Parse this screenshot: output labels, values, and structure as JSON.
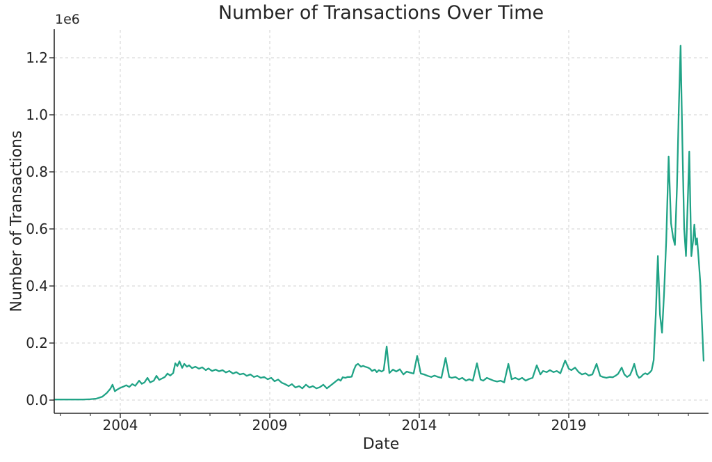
{
  "figure": {
    "background": "#ffffff",
    "text_color": "#252525"
  },
  "chart_data": {
    "type": "line",
    "title": "Number of Transactions Over Time",
    "xlabel": "Date",
    "ylabel": "Number of Transactions",
    "y_offset_label": "1e6",
    "y_unit_multiplier": 1000000,
    "grid": true,
    "grid_style": "dashed",
    "grid_color": "#d0d0d0",
    "line_color": "#20a386",
    "spine_color": "#2a2a2a",
    "legend": null,
    "xlim": [
      2001.791,
      2023.651
    ],
    "ylim": [
      -0.0463,
      1.2976
    ],
    "x_ticks": [
      2004,
      2009,
      2014,
      2019
    ],
    "x_tick_labels": [
      "2004",
      "2009",
      "2014",
      "2019"
    ],
    "x_minor_ticks": [
      2002,
      2003,
      2005,
      2006,
      2007,
      2008,
      2010,
      2011,
      2012,
      2013,
      2015,
      2016,
      2017,
      2018,
      2020,
      2021,
      2022,
      2023
    ],
    "y_ticks": [
      0.0,
      0.2,
      0.4,
      0.6,
      0.8,
      1.0,
      1.2
    ],
    "y_tick_labels": [
      "0.0",
      "0.2",
      "0.4",
      "0.6",
      "0.8",
      "1.0",
      "1.2"
    ],
    "series": [
      {
        "name": "transactions",
        "units": "millions",
        "points": [
          [
            2001.79,
            0.002
          ],
          [
            2002.0,
            0.002
          ],
          [
            2002.25,
            0.002
          ],
          [
            2002.5,
            0.002
          ],
          [
            2002.75,
            0.002
          ],
          [
            2003.0,
            0.003
          ],
          [
            2003.2,
            0.005
          ],
          [
            2003.4,
            0.012
          ],
          [
            2003.55,
            0.025
          ],
          [
            2003.67,
            0.04
          ],
          [
            2003.74,
            0.054
          ],
          [
            2003.82,
            0.031
          ],
          [
            2003.9,
            0.037
          ],
          [
            2004.0,
            0.043
          ],
          [
            2004.1,
            0.047
          ],
          [
            2004.2,
            0.052
          ],
          [
            2004.3,
            0.046
          ],
          [
            2004.4,
            0.056
          ],
          [
            2004.5,
            0.05
          ],
          [
            2004.63,
            0.068
          ],
          [
            2004.72,
            0.057
          ],
          [
            2004.81,
            0.062
          ],
          [
            2004.91,
            0.078
          ],
          [
            2005.0,
            0.062
          ],
          [
            2005.12,
            0.068
          ],
          [
            2005.21,
            0.085
          ],
          [
            2005.3,
            0.071
          ],
          [
            2005.4,
            0.076
          ],
          [
            2005.49,
            0.081
          ],
          [
            2005.58,
            0.093
          ],
          [
            2005.67,
            0.086
          ],
          [
            2005.77,
            0.095
          ],
          [
            2005.84,
            0.129
          ],
          [
            2005.91,
            0.119
          ],
          [
            2005.98,
            0.136
          ],
          [
            2006.07,
            0.113
          ],
          [
            2006.14,
            0.127
          ],
          [
            2006.23,
            0.117
          ],
          [
            2006.3,
            0.122
          ],
          [
            2006.4,
            0.112
          ],
          [
            2006.51,
            0.117
          ],
          [
            2006.63,
            0.11
          ],
          [
            2006.74,
            0.115
          ],
          [
            2006.86,
            0.105
          ],
          [
            2006.95,
            0.111
          ],
          [
            2007.07,
            0.102
          ],
          [
            2007.19,
            0.107
          ],
          [
            2007.3,
            0.101
          ],
          [
            2007.42,
            0.105
          ],
          [
            2007.53,
            0.097
          ],
          [
            2007.65,
            0.102
          ],
          [
            2007.77,
            0.093
          ],
          [
            2007.88,
            0.098
          ],
          [
            2008.0,
            0.09
          ],
          [
            2008.12,
            0.093
          ],
          [
            2008.23,
            0.085
          ],
          [
            2008.35,
            0.09
          ],
          [
            2008.47,
            0.081
          ],
          [
            2008.58,
            0.085
          ],
          [
            2008.7,
            0.078
          ],
          [
            2008.81,
            0.081
          ],
          [
            2008.93,
            0.073
          ],
          [
            2009.05,
            0.078
          ],
          [
            2009.16,
            0.066
          ],
          [
            2009.28,
            0.072
          ],
          [
            2009.4,
            0.061
          ],
          [
            2009.51,
            0.056
          ],
          [
            2009.63,
            0.049
          ],
          [
            2009.74,
            0.056
          ],
          [
            2009.86,
            0.044
          ],
          [
            2009.98,
            0.049
          ],
          [
            2010.09,
            0.041
          ],
          [
            2010.21,
            0.054
          ],
          [
            2010.33,
            0.044
          ],
          [
            2010.44,
            0.049
          ],
          [
            2010.56,
            0.041
          ],
          [
            2010.67,
            0.045
          ],
          [
            2010.79,
            0.054
          ],
          [
            2010.91,
            0.041
          ],
          [
            2011.02,
            0.05
          ],
          [
            2011.14,
            0.06
          ],
          [
            2011.21,
            0.066
          ],
          [
            2011.3,
            0.073
          ],
          [
            2011.37,
            0.068
          ],
          [
            2011.44,
            0.08
          ],
          [
            2011.53,
            0.078
          ],
          [
            2011.6,
            0.081
          ],
          [
            2011.67,
            0.081
          ],
          [
            2011.74,
            0.082
          ],
          [
            2011.81,
            0.105
          ],
          [
            2011.88,
            0.122
          ],
          [
            2011.95,
            0.127
          ],
          [
            2012.05,
            0.117
          ],
          [
            2012.12,
            0.12
          ],
          [
            2012.19,
            0.117
          ],
          [
            2012.28,
            0.114
          ],
          [
            2012.35,
            0.11
          ],
          [
            2012.42,
            0.102
          ],
          [
            2012.51,
            0.107
          ],
          [
            2012.58,
            0.098
          ],
          [
            2012.65,
            0.105
          ],
          [
            2012.74,
            0.1
          ],
          [
            2012.81,
            0.105
          ],
          [
            2012.91,
            0.188
          ],
          [
            2013.0,
            0.095
          ],
          [
            2013.12,
            0.107
          ],
          [
            2013.23,
            0.1
          ],
          [
            2013.35,
            0.108
          ],
          [
            2013.47,
            0.09
          ],
          [
            2013.58,
            0.1
          ],
          [
            2013.7,
            0.096
          ],
          [
            2013.81,
            0.093
          ],
          [
            2013.93,
            0.155
          ],
          [
            2014.05,
            0.093
          ],
          [
            2014.16,
            0.09
          ],
          [
            2014.28,
            0.085
          ],
          [
            2014.4,
            0.081
          ],
          [
            2014.51,
            0.086
          ],
          [
            2014.63,
            0.081
          ],
          [
            2014.74,
            0.078
          ],
          [
            2014.88,
            0.148
          ],
          [
            2015.0,
            0.081
          ],
          [
            2015.09,
            0.078
          ],
          [
            2015.21,
            0.081
          ],
          [
            2015.33,
            0.073
          ],
          [
            2015.44,
            0.078
          ],
          [
            2015.56,
            0.068
          ],
          [
            2015.67,
            0.073
          ],
          [
            2015.79,
            0.068
          ],
          [
            2015.93,
            0.129
          ],
          [
            2016.05,
            0.072
          ],
          [
            2016.14,
            0.068
          ],
          [
            2016.26,
            0.078
          ],
          [
            2016.37,
            0.073
          ],
          [
            2016.49,
            0.068
          ],
          [
            2016.6,
            0.065
          ],
          [
            2016.72,
            0.068
          ],
          [
            2016.84,
            0.062
          ],
          [
            2016.98,
            0.127
          ],
          [
            2017.09,
            0.073
          ],
          [
            2017.21,
            0.078
          ],
          [
            2017.33,
            0.072
          ],
          [
            2017.44,
            0.078
          ],
          [
            2017.56,
            0.068
          ],
          [
            2017.67,
            0.074
          ],
          [
            2017.79,
            0.078
          ],
          [
            2017.93,
            0.122
          ],
          [
            2018.05,
            0.09
          ],
          [
            2018.14,
            0.102
          ],
          [
            2018.26,
            0.098
          ],
          [
            2018.37,
            0.105
          ],
          [
            2018.49,
            0.098
          ],
          [
            2018.6,
            0.102
          ],
          [
            2018.72,
            0.094
          ],
          [
            2018.88,
            0.139
          ],
          [
            2019.0,
            0.11
          ],
          [
            2019.09,
            0.105
          ],
          [
            2019.21,
            0.114
          ],
          [
            2019.33,
            0.098
          ],
          [
            2019.44,
            0.09
          ],
          [
            2019.56,
            0.094
          ],
          [
            2019.67,
            0.086
          ],
          [
            2019.79,
            0.09
          ],
          [
            2019.93,
            0.127
          ],
          [
            2020.05,
            0.085
          ],
          [
            2020.14,
            0.081
          ],
          [
            2020.26,
            0.078
          ],
          [
            2020.37,
            0.081
          ],
          [
            2020.47,
            0.08
          ],
          [
            2020.56,
            0.085
          ],
          [
            2020.65,
            0.092
          ],
          [
            2020.77,
            0.114
          ],
          [
            2020.86,
            0.09
          ],
          [
            2020.95,
            0.081
          ],
          [
            2021.05,
            0.088
          ],
          [
            2021.12,
            0.105
          ],
          [
            2021.19,
            0.127
          ],
          [
            2021.28,
            0.09
          ],
          [
            2021.35,
            0.078
          ],
          [
            2021.42,
            0.082
          ],
          [
            2021.49,
            0.09
          ],
          [
            2021.56,
            0.094
          ],
          [
            2021.63,
            0.09
          ],
          [
            2021.7,
            0.096
          ],
          [
            2021.77,
            0.104
          ],
          [
            2021.84,
            0.14
          ],
          [
            2021.91,
            0.3
          ],
          [
            2021.98,
            0.505
          ],
          [
            2022.05,
            0.3
          ],
          [
            2022.12,
            0.236
          ],
          [
            2022.19,
            0.38
          ],
          [
            2022.26,
            0.56
          ],
          [
            2022.34,
            0.854
          ],
          [
            2022.42,
            0.62
          ],
          [
            2022.49,
            0.57
          ],
          [
            2022.55,
            0.544
          ],
          [
            2022.62,
            0.75
          ],
          [
            2022.68,
            1.02
          ],
          [
            2022.74,
            1.242
          ],
          [
            2022.8,
            0.9
          ],
          [
            2022.86,
            0.6
          ],
          [
            2022.92,
            0.505
          ],
          [
            2022.99,
            0.73
          ],
          [
            2023.03,
            0.871
          ],
          [
            2023.1,
            0.505
          ],
          [
            2023.16,
            0.56
          ],
          [
            2023.2,
            0.615
          ],
          [
            2023.25,
            0.545
          ],
          [
            2023.29,
            0.567
          ],
          [
            2023.34,
            0.5
          ],
          [
            2023.4,
            0.41
          ],
          [
            2023.45,
            0.28
          ],
          [
            2023.51,
            0.138
          ]
        ]
      }
    ]
  }
}
